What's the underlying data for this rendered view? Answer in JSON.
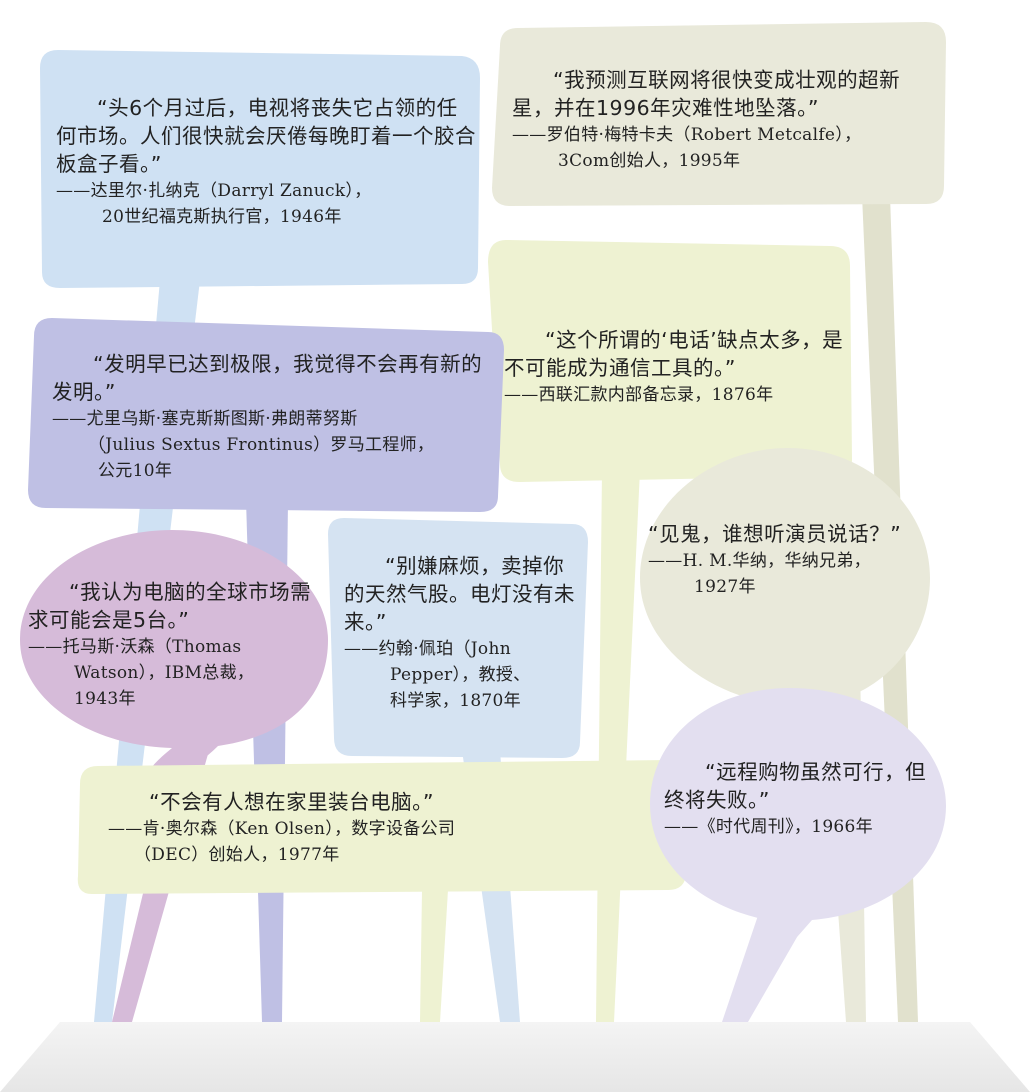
{
  "quotes": [
    {
      "id": "zanuck",
      "quote": "“头6个月过后，电视将丧失它占领的任何市场。人们很快就会厌倦每晚盯着一个胶合板盒子看。”",
      "attr1": "——达里尔·扎纳克（Darryl Zanuck），",
      "attr2": "20世纪福克斯执行官，1946年",
      "color": "#cfe1f3"
    },
    {
      "id": "metcalfe",
      "quote": "“我预测互联网将很快变成壮观的超新星，并在1996年灾难性地坠落。”",
      "attr1": "——罗伯特·梅特卡夫（Robert Metcalfe），",
      "attr2": "3Com创始人，1995年",
      "color": "#e9e9da"
    },
    {
      "id": "frontinus",
      "quote": "“发明早已达到极限，我觉得不会再有新的发明。”",
      "attr1": "——尤里乌斯·塞克斯斯图斯·弗朗蒂努斯",
      "attr2": "（Julius Sextus Frontinus）罗马工程师，",
      "attr3": "公元10年",
      "color": "#bfc0e4"
    },
    {
      "id": "telephone",
      "quote": "“这个所谓的‘电话’缺点太多，是不可能成为通信工具的。”",
      "attr1": "——西联汇款内部备忘录，1876年",
      "color": "#eef2d2"
    },
    {
      "id": "watson",
      "quote": "“我认为电脑的全球市场需求可能会是5台。”",
      "attr1": "——托马斯·沃森（Thomas",
      "attr2": "Watson），IBM总裁，",
      "attr3": "1943年",
      "color": "#d6bbd9"
    },
    {
      "id": "pepper",
      "quote": "“别嫌麻烦，卖掉你的天然气股。电灯没有未来。”",
      "attr1": "——约翰·佩珀（John",
      "attr2": "Pepper），教授、",
      "attr3": "科学家，1870年",
      "color": "#d5e3f2"
    },
    {
      "id": "warner",
      "quote": "“见鬼，谁想听演员说话？”",
      "attr1": "——H. M.华纳，华纳兄弟，",
      "attr2": "1927年",
      "color": "#e9e9da"
    },
    {
      "id": "olsen",
      "quote": "“不会有人想在家里装台电脑。”",
      "attr1": "——肯·奥尔森（Ken Olsen），数字设备公司",
      "attr2": "（DEC）创始人，1977年",
      "color": "#eef2d2"
    },
    {
      "id": "time",
      "quote": "“远程购物虽然可行，但终将失败。”",
      "attr1": "——《时代周刊》，1966年",
      "color": "#e3dff0"
    }
  ]
}
